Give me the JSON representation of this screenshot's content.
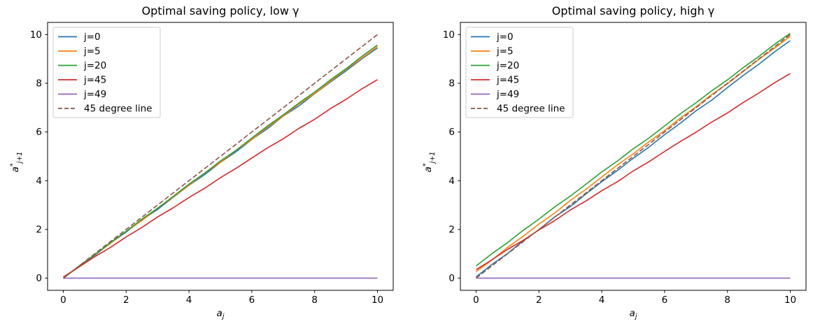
{
  "figure": {
    "background": "#ffffff",
    "spine_color": "#000000",
    "tick_color": "#000000",
    "legend_border_color": "#cccccc",
    "legend_background": "#ffffff"
  },
  "chart_data": [
    {
      "type": "line",
      "title": "Optimal saving policy, low γ",
      "xlabel": {
        "base": "a",
        "sub": "j"
      },
      "ylabel": {
        "base": "a",
        "sup": "*",
        "sub": "j+1"
      },
      "xlim": [
        -0.5,
        10.5
      ],
      "ylim": [
        -0.5,
        10.5
      ],
      "xticks": [
        0,
        2,
        4,
        6,
        8,
        10
      ],
      "yticks": [
        0,
        2,
        4,
        6,
        8,
        10
      ],
      "grid": false,
      "legend_position": "upper left",
      "x": [
        0,
        0.5,
        1,
        1.5,
        2,
        2.5,
        3,
        3.5,
        4,
        4.5,
        5,
        5.5,
        6,
        6.5,
        7,
        7.5,
        8,
        8.5,
        9,
        9.5,
        10
      ],
      "series": [
        {
          "name": "j=0",
          "color": "#1f77b4",
          "style": "solid",
          "y": [
            0,
            0.49,
            0.94,
            1.44,
            1.89,
            2.39,
            2.82,
            3.32,
            3.81,
            4.25,
            4.75,
            5.19,
            5.69,
            6.14,
            6.65,
            7.07,
            7.57,
            8.05,
            8.51,
            9.0,
            9.45
          ]
        },
        {
          "name": "j=5",
          "color": "#ff7f0e",
          "style": "solid",
          "y": [
            0,
            0.47,
            0.97,
            1.43,
            1.92,
            2.36,
            2.87,
            3.33,
            3.82,
            4.31,
            4.75,
            5.25,
            5.69,
            6.2,
            6.65,
            7.15,
            7.58,
            8.08,
            8.57,
            9.03,
            9.5
          ]
        },
        {
          "name": "j=20",
          "color": "#2ca02c",
          "style": "solid",
          "y": [
            0,
            0.5,
            0.96,
            1.46,
            1.92,
            2.42,
            2.87,
            3.36,
            3.86,
            4.31,
            4.81,
            5.25,
            5.75,
            6.25,
            6.7,
            7.19,
            7.64,
            8.14,
            8.6,
            9.1,
            9.57
          ]
        },
        {
          "name": "j=45",
          "color": "#d62728",
          "style": "solid",
          "y": [
            0.05,
            0.46,
            0.88,
            1.26,
            1.69,
            2.08,
            2.51,
            2.89,
            3.31,
            3.69,
            4.12,
            4.51,
            4.93,
            5.35,
            5.72,
            6.15,
            6.52,
            6.96,
            7.34,
            7.77,
            8.15
          ]
        },
        {
          "name": "j=49",
          "color": "#9467bd",
          "style": "solid",
          "y": [
            0,
            0,
            0,
            0,
            0,
            0,
            0,
            0,
            0,
            0,
            0,
            0,
            0,
            0,
            0,
            0,
            0,
            0,
            0,
            0,
            0
          ]
        },
        {
          "name": "45 degree line",
          "color": "#8c564b",
          "style": "dashed",
          "y": [
            0,
            0.5,
            1,
            1.5,
            2,
            2.5,
            3,
            3.5,
            4,
            4.5,
            5,
            5.5,
            6,
            6.5,
            7,
            7.5,
            8,
            8.5,
            9,
            9.5,
            10
          ]
        }
      ]
    },
    {
      "type": "line",
      "title": "Optimal saving policy, high γ",
      "xlabel": {
        "base": "a",
        "sub": "j"
      },
      "ylabel": {
        "base": "a",
        "sup": "*",
        "sub": "j+1"
      },
      "xlim": [
        -0.5,
        10.5
      ],
      "ylim": [
        -0.5,
        10.5
      ],
      "xticks": [
        0,
        2,
        4,
        6,
        8,
        10
      ],
      "yticks": [
        0,
        2,
        4,
        6,
        8,
        10
      ],
      "grid": false,
      "legend_position": "upper left",
      "x": [
        0,
        0.5,
        1,
        1.5,
        2,
        2.5,
        3,
        3.5,
        4,
        4.5,
        5,
        5.5,
        6,
        6.5,
        7,
        7.5,
        8,
        8.5,
        9,
        9.5,
        10
      ],
      "series": [
        {
          "name": "j=0",
          "color": "#1f77b4",
          "style": "solid",
          "y": [
            0.05,
            0.56,
            1.01,
            1.53,
            1.99,
            2.51,
            2.94,
            3.46,
            3.96,
            4.42,
            4.92,
            5.38,
            5.89,
            6.36,
            6.87,
            7.31,
            7.82,
            8.32,
            8.78,
            9.29,
            9.75
          ]
        },
        {
          "name": "j=5",
          "color": "#ff7f0e",
          "style": "solid",
          "y": [
            0.27,
            0.74,
            1.26,
            1.72,
            2.22,
            2.67,
            3.19,
            3.65,
            4.15,
            4.65,
            5.1,
            5.6,
            6.06,
            6.57,
            7.03,
            7.54,
            7.98,
            8.48,
            8.98,
            9.45,
            9.93
          ]
        },
        {
          "name": "j=20",
          "color": "#2ca02c",
          "style": "solid",
          "y": [
            0.5,
            1.0,
            1.46,
            1.96,
            2.42,
            2.92,
            3.37,
            3.86,
            4.36,
            4.81,
            5.31,
            5.75,
            6.25,
            6.75,
            7.2,
            7.69,
            8.14,
            8.64,
            9.1,
            9.6,
            10.05
          ]
        },
        {
          "name": "j=45",
          "color": "#d62728",
          "style": "solid",
          "y": [
            0.35,
            0.75,
            1.18,
            1.55,
            1.98,
            2.36,
            2.8,
            3.17,
            3.59,
            3.96,
            4.4,
            4.78,
            5.2,
            5.61,
            5.99,
            6.41,
            6.78,
            7.21,
            7.6,
            8.02,
            8.4
          ]
        },
        {
          "name": "j=49",
          "color": "#9467bd",
          "style": "solid",
          "y": [
            0,
            0,
            0,
            0,
            0,
            0,
            0,
            0,
            0,
            0,
            0,
            0,
            0,
            0,
            0,
            0,
            0,
            0,
            0,
            0,
            0
          ]
        },
        {
          "name": "45 degree line",
          "color": "#8c564b",
          "style": "dashed",
          "y": [
            0,
            0.5,
            1,
            1.5,
            2,
            2.5,
            3,
            3.5,
            4,
            4.5,
            5,
            5.5,
            6,
            6.5,
            7,
            7.5,
            8,
            8.5,
            9,
            9.5,
            10
          ]
        }
      ]
    }
  ]
}
